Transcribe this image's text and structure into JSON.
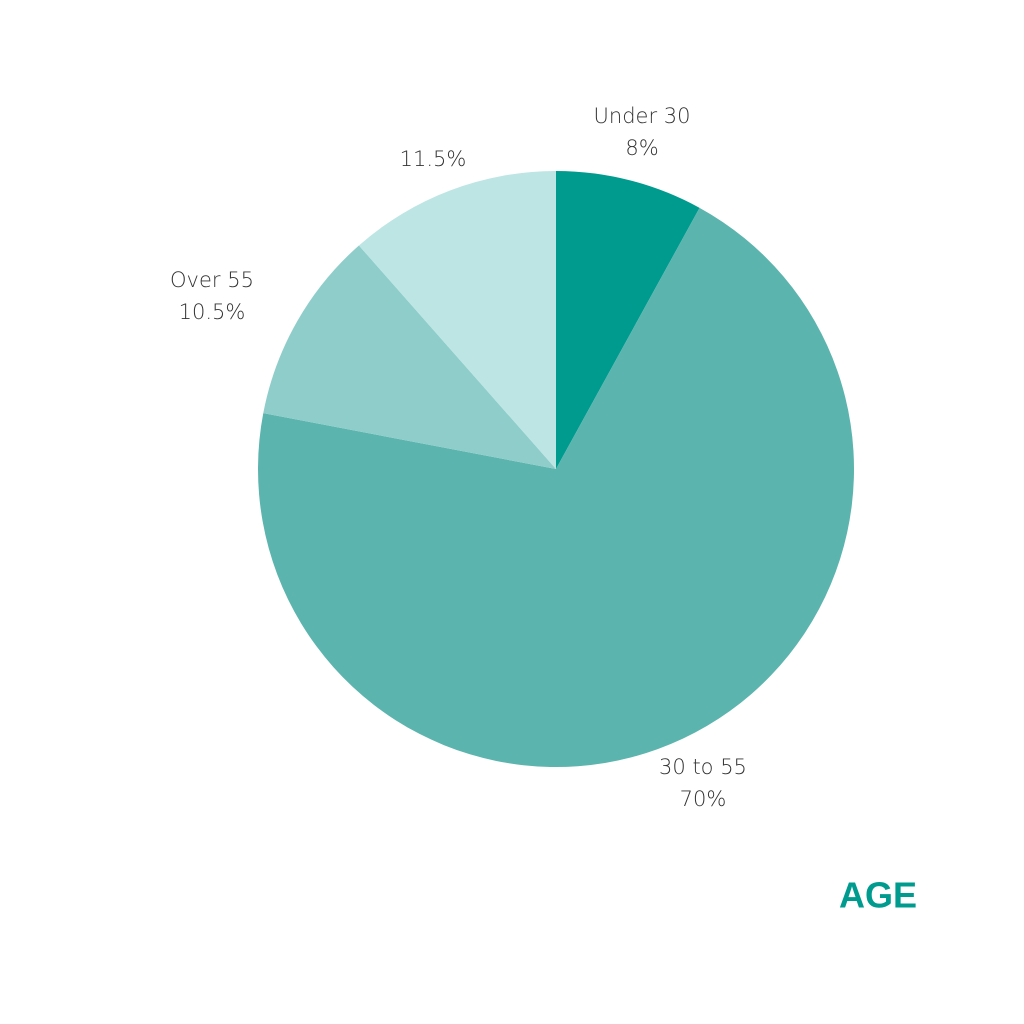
{
  "chart_data": {
    "type": "pie",
    "title": "AGE",
    "categories": [
      "Under 30",
      "30 to 55",
      "Over 55",
      null
    ],
    "values": [
      8,
      70,
      10.5,
      11.5
    ],
    "value_labels": [
      "8%",
      "70%",
      "10.5%",
      "11.5%"
    ],
    "colors": [
      "#009b8f",
      "#5bb4ad",
      "#8ecdca",
      "#bce5e4"
    ]
  }
}
